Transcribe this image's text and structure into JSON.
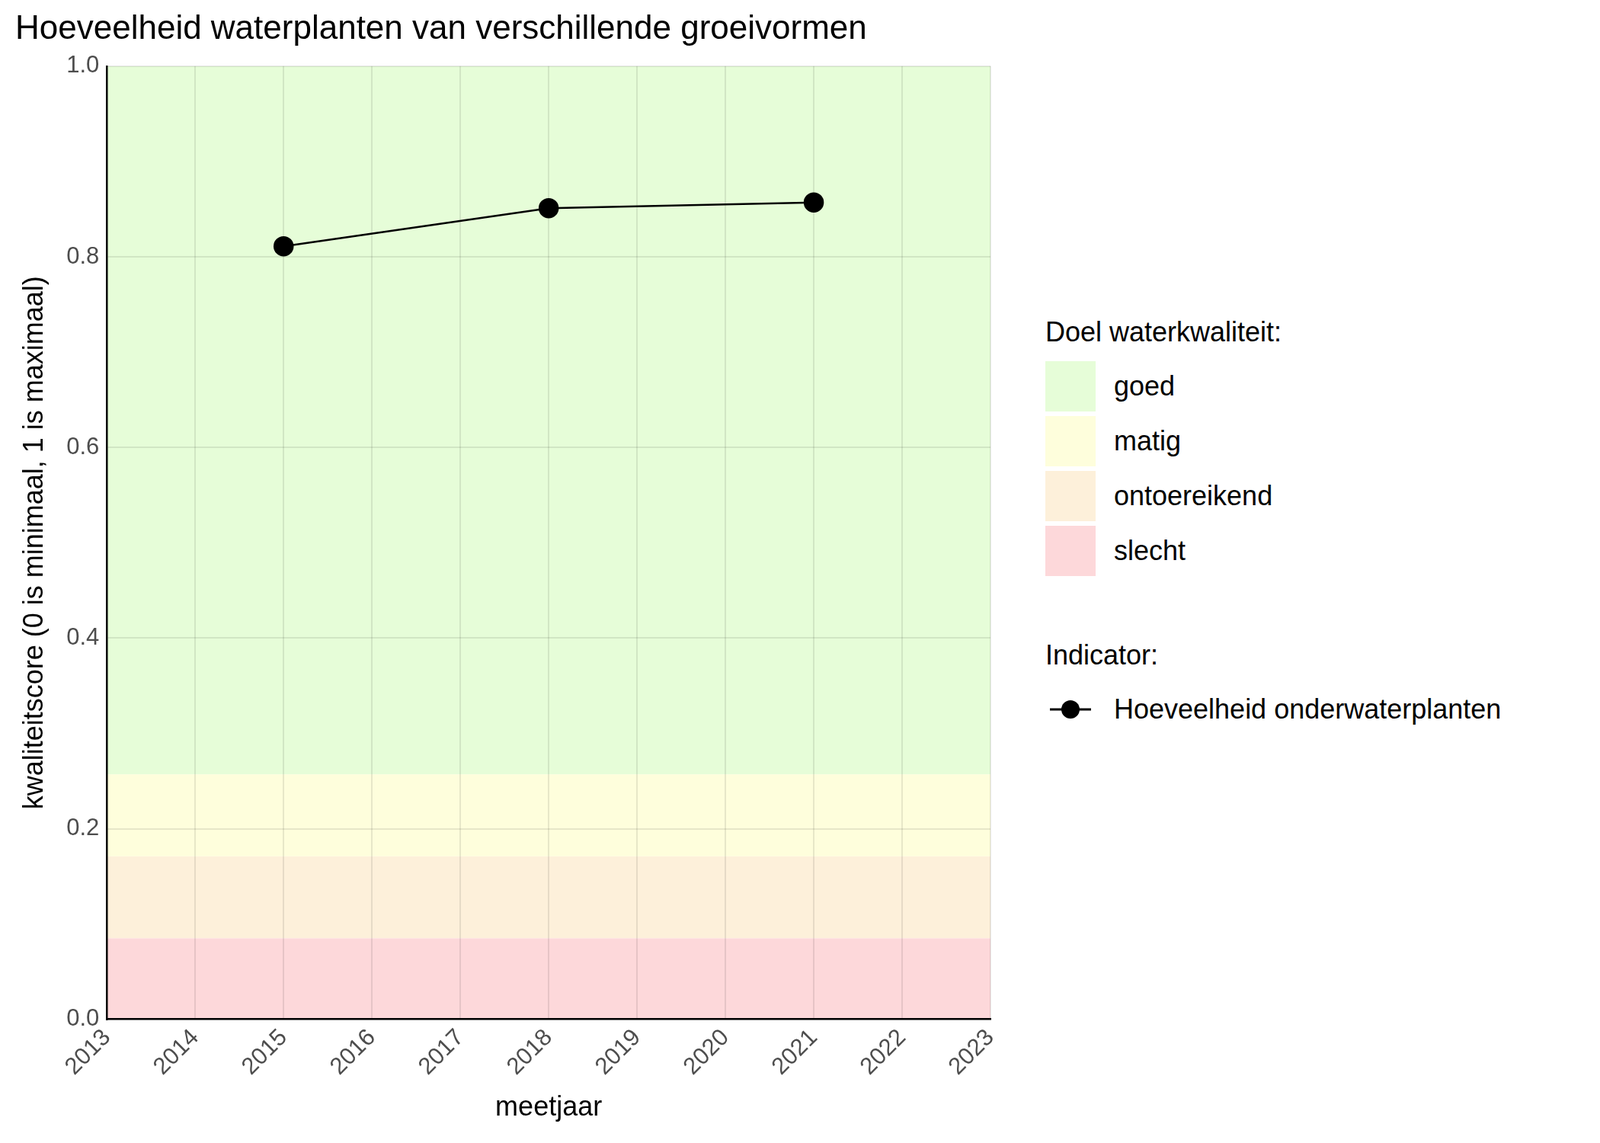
{
  "chart_data": {
    "type": "line",
    "title": "Hoeveelheid waterplanten van verschillende groeivormen",
    "xlabel": "meetjaar",
    "ylabel": "kwaliteitscore (0 is minimaal, 1 is maximaal)",
    "x": [
      2015,
      2018,
      2021
    ],
    "series": [
      {
        "name": "Hoeveelheid onderwaterplanten",
        "color": "#000000",
        "values": [
          0.811,
          0.851,
          0.857
        ],
        "marker": "circle",
        "line_style": "solid"
      }
    ],
    "xlim": [
      2013,
      2023
    ],
    "xticks": [
      2013,
      2014,
      2015,
      2016,
      2017,
      2018,
      2019,
      2020,
      2021,
      2022,
      2023
    ],
    "ylim": [
      0,
      1
    ],
    "yticks": [
      {
        "value": 0,
        "label": "0.0"
      },
      0.2,
      0.4,
      0.6,
      0.8,
      {
        "value": 1,
        "label": "1.0"
      }
    ],
    "grid": true,
    "legend": "right",
    "bands_title": "Doel waterkwaliteit:",
    "series_title": "Indicator:",
    "bands": [
      {
        "name": "goed",
        "from": 0.257,
        "to": 1,
        "color": "#e6fdd8"
      },
      {
        "name": "matig",
        "from": 0.171,
        "to": 0.257,
        "color": "#fefedc"
      },
      {
        "name": "ontoereikend",
        "from": 0.085,
        "to": 0.171,
        "color": "#fdf0da"
      },
      {
        "name": "slecht",
        "from": 0,
        "to": 0.085,
        "color": "#fdd8da"
      }
    ]
  }
}
